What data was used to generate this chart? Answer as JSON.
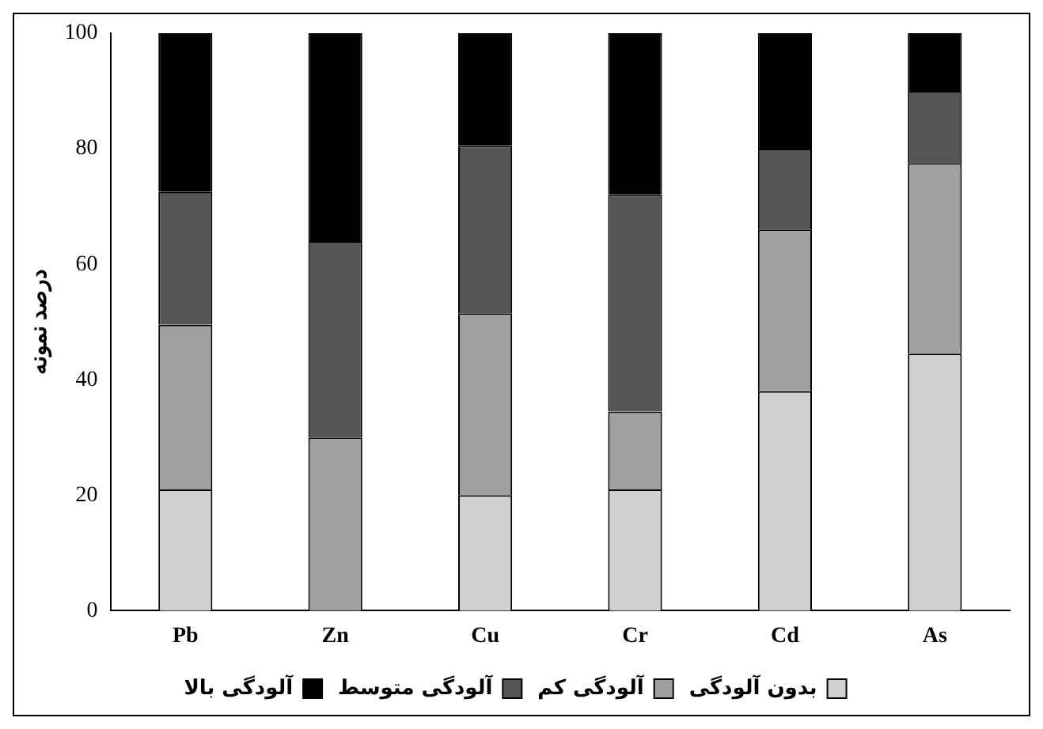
{
  "chart_data": {
    "type": "bar",
    "stacked": true,
    "ylabel": "درصد نمونه",
    "categories": [
      "Pb",
      "Zn",
      "Cu",
      "Cr",
      "Cd",
      "As"
    ],
    "series": [
      {
        "name": "بدون آلودگی",
        "color": "#d0d0d0",
        "values": [
          21,
          0,
          20,
          21,
          38,
          44.5
        ]
      },
      {
        "name": "آلودگی کم",
        "color": "#a0a0a0",
        "values": [
          28.5,
          30,
          31.5,
          13.5,
          28,
          33
        ]
      },
      {
        "name": "آلودگی متوسط",
        "color": "#555555",
        "values": [
          23,
          34,
          29,
          37.5,
          14,
          12.5
        ]
      },
      {
        "name": "آلودگی بالا",
        "color": "#000000",
        "values": [
          27.5,
          36,
          19.5,
          28,
          20,
          10
        ]
      }
    ],
    "ylim": [
      0,
      100
    ],
    "yticks": [
      0,
      20,
      40,
      60,
      80,
      100
    ],
    "grid": false,
    "legend": "bottom"
  }
}
